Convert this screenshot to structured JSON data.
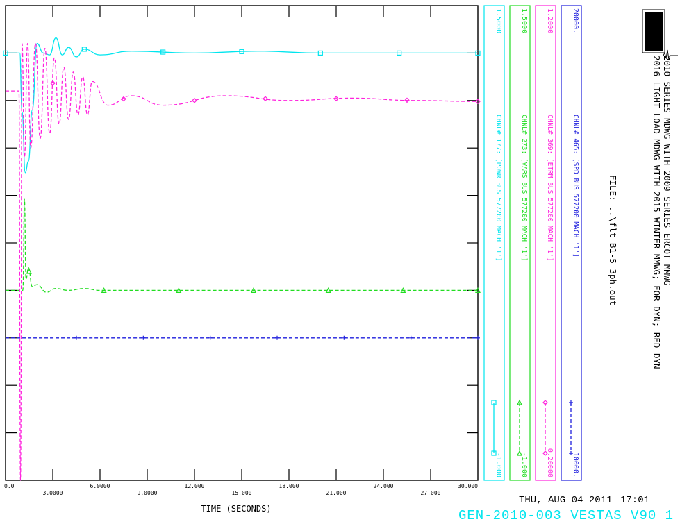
{
  "chart_data": {
    "type": "line",
    "xlabel": "TIME (SECONDS)",
    "x_ticks": [
      "0.0",
      "3.0000",
      "6.0000",
      "9.0000",
      "12.000",
      "15.000",
      "18.000",
      "21.000",
      "24.000",
      "27.000",
      "30.000"
    ],
    "xlim": [
      0,
      30
    ],
    "grid": false,
    "series": [
      {
        "channel_label": "CHNL# 177: [POWR BUS 577200 MACH '1']",
        "color": "#00e5ee",
        "line": "solid",
        "marker": "square",
        "scale_max": "1.5000",
        "scale_min": "-1.000",
        "ylim": [
          -1.0,
          1.5
        ],
        "x": [
          0,
          0.9,
          1.05,
          1.25,
          1.45,
          1.7,
          2.0,
          2.4,
          2.8,
          3.2,
          3.6,
          4.0,
          4.5,
          5.0,
          6.0,
          8.0,
          12.0,
          16.0,
          20.0,
          25.0,
          30.0
        ],
        "y": [
          1.25,
          1.25,
          0.94,
          0.62,
          0.68,
          0.95,
          1.3,
          1.25,
          1.24,
          1.33,
          1.24,
          1.28,
          1.23,
          1.27,
          1.24,
          1.26,
          1.25,
          1.26,
          1.25,
          1.25,
          1.25
        ]
      },
      {
        "channel_label": "CHNL# 273: [VARS BUS 577200 MACH '1']",
        "color": "#22dd22",
        "line": "dashed",
        "marker": "triangle",
        "scale_max": "1.5000",
        "scale_min": "-1.000",
        "ylim": [
          -1.0,
          1.5
        ],
        "x": [
          0,
          1.1,
          1.2,
          1.3,
          1.45,
          1.7,
          2.0,
          2.6,
          3.2,
          4.0,
          5.0,
          6.0,
          8.0,
          12.0,
          20.0,
          30.0
        ],
        "y": [
          0.0,
          0.0,
          0.48,
          0.06,
          0.12,
          0.02,
          0.03,
          -0.01,
          0.01,
          0.0,
          0.01,
          0.0,
          0.0,
          0.0,
          0.0,
          0.0
        ]
      },
      {
        "channel_label": "CHNL# 369: [ETRM BUS 577200 MACH '1']",
        "color": "#ff22dd",
        "line": "dashed",
        "marker": "diamond",
        "scale_max": "1.2000",
        "scale_min": "0.20000",
        "ylim": [
          0.2,
          1.2
        ],
        "x": [
          0,
          0.85,
          0.95,
          1.05,
          1.2,
          1.4,
          1.6,
          1.9,
          2.2,
          2.5,
          2.8,
          3.1,
          3.4,
          3.7,
          4.0,
          4.3,
          4.6,
          4.9,
          5.2,
          5.5,
          6.5,
          8.0,
          10.0,
          14.0,
          18.0,
          22.0,
          26.0,
          30.0
        ],
        "y": [
          1.02,
          1.02,
          0.2,
          1.12,
          0.88,
          1.12,
          0.9,
          1.12,
          0.92,
          1.11,
          0.93,
          1.09,
          0.95,
          1.07,
          0.96,
          1.06,
          0.97,
          1.05,
          0.97,
          1.04,
          0.99,
          1.01,
          0.99,
          1.01,
          1.0,
          1.005,
          1.0,
          0.998
        ]
      },
      {
        "channel_label": "CHNL# 465: [SPD BUS 577200 MACH '1']",
        "color": "#1f1fdd",
        "line": "dashed",
        "marker": "plus",
        "scale_max": "20000.",
        "scale_min": "10000.",
        "ylim": [
          10000,
          20000
        ],
        "x": [
          0,
          30
        ],
        "y": [
          13000,
          13000
        ]
      }
    ]
  },
  "header": {
    "title_line_1": "2010 SERIES MDWG WITH 2009 SERIES ERCOT MMWG",
    "title_line_2": "2016 LIGHT LOAD MDWG WITH 2015 WINTER MMWG; FOR DYN; RED DYN",
    "file_label": "FILE: ..\\flt_B1-5_3ph.out",
    "run_date": "THU, AUG 04 2011",
    "run_time": "17:01",
    "case_title": "GEN-2010-003 VESTAS V90 1"
  }
}
